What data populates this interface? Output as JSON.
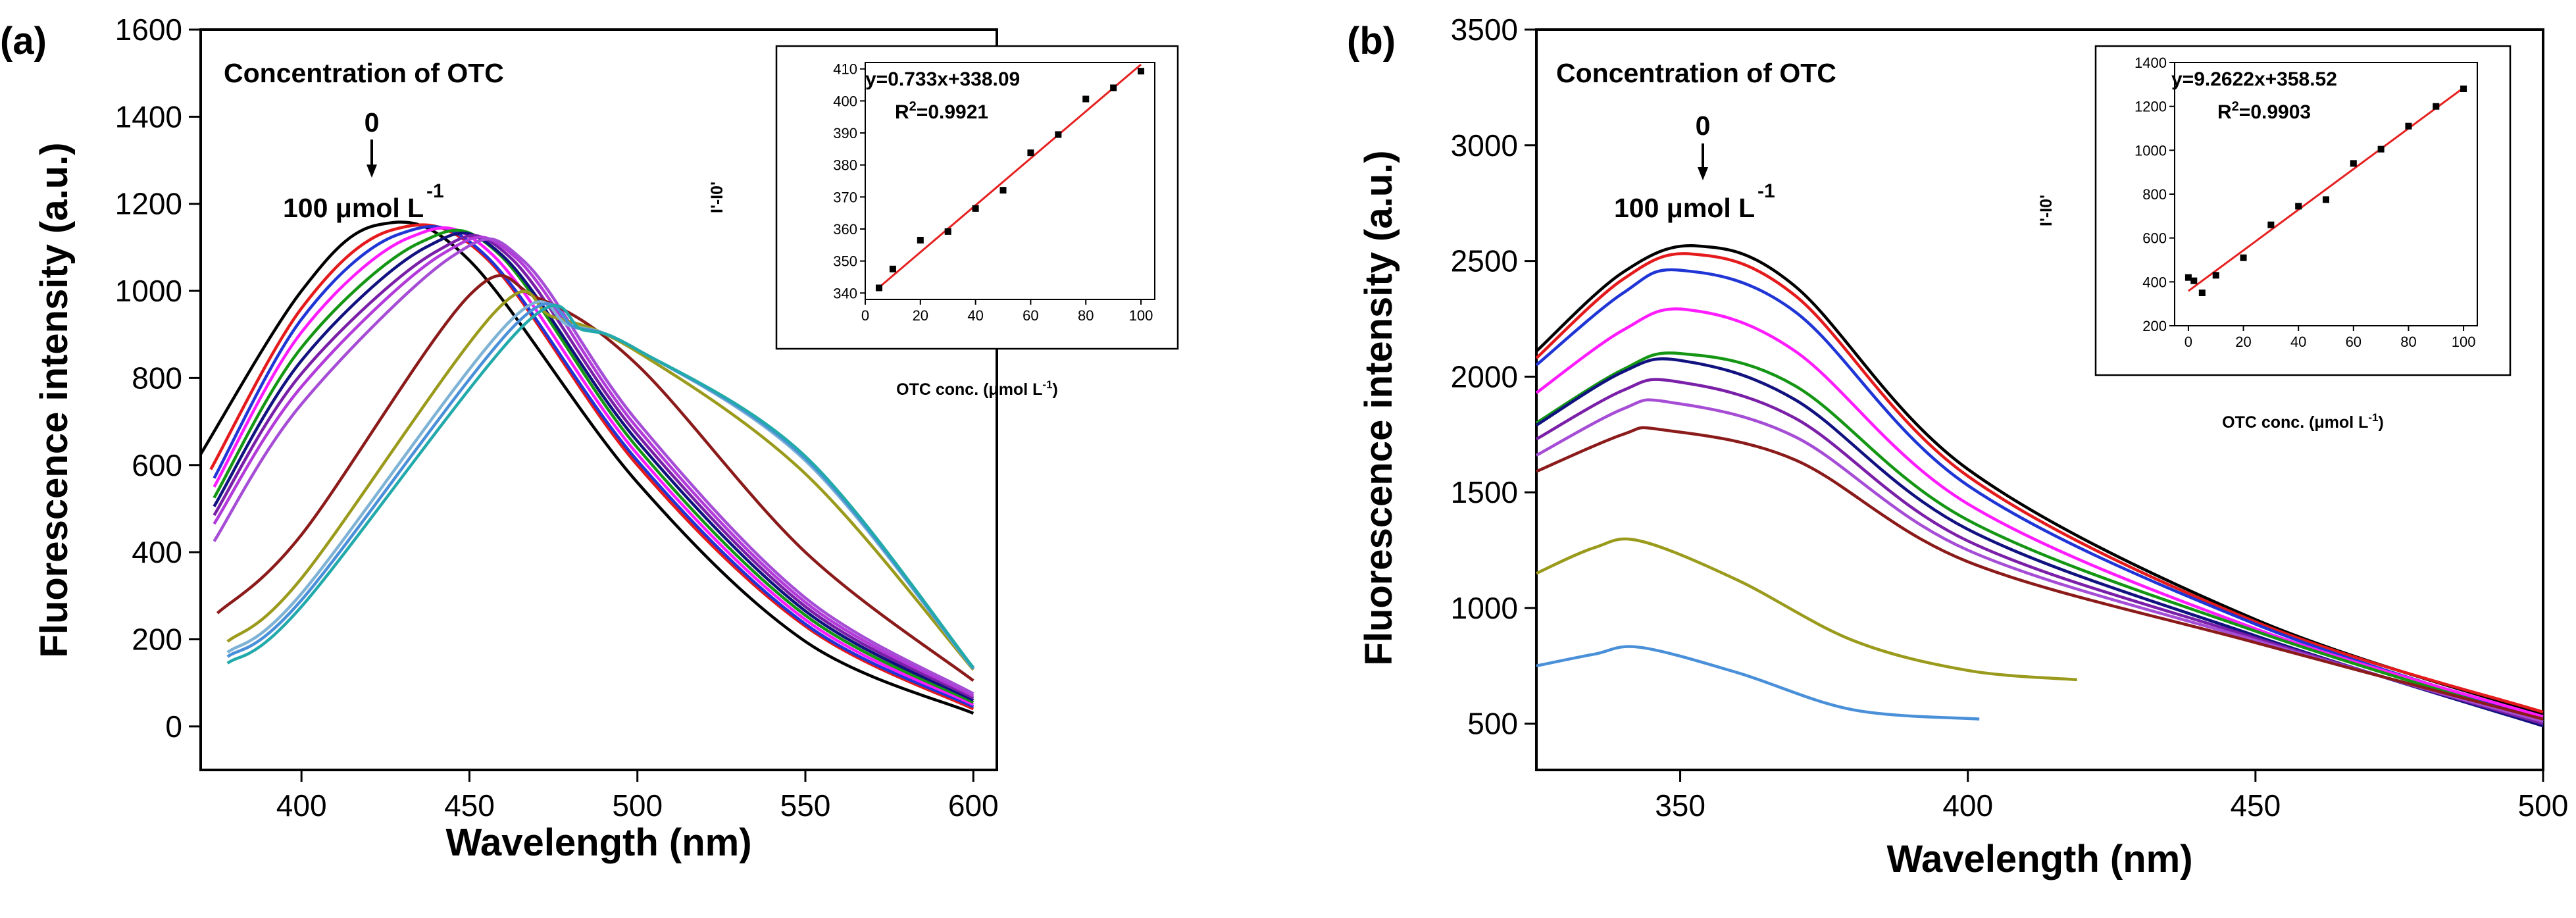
{
  "chart_data": [
    {
      "id": "a",
      "type": "line",
      "panel_label": "(a)",
      "xlabel": "Wavelength (nm)",
      "ylabel": "Fluorescence intensity (a.u.)",
      "xlim": [
        370,
        607
      ],
      "ylim": [
        -100,
        1600
      ],
      "xticks": [
        400,
        450,
        500,
        550,
        600
      ],
      "yticks": [
        0,
        200,
        400,
        600,
        800,
        1000,
        1200,
        1400,
        1600
      ],
      "annotation_title": "Concentration of OTC",
      "annotation_start": "0",
      "annotation_end": "100 μmol L",
      "annotation_end_exp": "-1",
      "series": [
        {
          "color": "#000000",
          "x": [
            370,
            400,
            423,
            450,
            500,
            550,
            600
          ],
          "y": [
            625,
            1000,
            1152,
            1070,
            560,
            195,
            30
          ]
        },
        {
          "color": "#e41a1c",
          "x": [
            373,
            400,
            427,
            455,
            500,
            550,
            600
          ],
          "y": [
            590,
            960,
            1140,
            1075,
            600,
            230,
            40
          ]
        },
        {
          "color": "#1f35d6",
          "x": [
            374,
            400,
            429,
            455,
            500,
            550,
            600
          ],
          "y": [
            570,
            935,
            1130,
            1080,
            610,
            235,
            45
          ]
        },
        {
          "color": "#ff1cff",
          "x": [
            374,
            400,
            432,
            457,
            500,
            550,
            600
          ],
          "y": [
            550,
            905,
            1122,
            1082,
            625,
            245,
            50
          ]
        },
        {
          "color": "#149614",
          "x": [
            374,
            400,
            435,
            459,
            500,
            550,
            600
          ],
          "y": [
            525,
            870,
            1110,
            1083,
            640,
            255,
            55
          ]
        },
        {
          "color": "#11117f",
          "x": [
            374,
            400,
            437,
            460,
            500,
            550,
            600
          ],
          "y": [
            505,
            840,
            1100,
            1080,
            655,
            265,
            60
          ]
        },
        {
          "color": "#7a1fa8",
          "x": [
            374,
            400,
            440,
            462,
            500,
            550,
            600
          ],
          "y": [
            485,
            810,
            1090,
            1078,
            670,
            275,
            65
          ]
        },
        {
          "color": "#b23bd9",
          "x": [
            374,
            400,
            442,
            464,
            500,
            550,
            600
          ],
          "y": [
            465,
            780,
            1085,
            1075,
            685,
            285,
            70
          ]
        },
        {
          "color": "#a64dd6",
          "x": [
            374,
            400,
            445,
            466,
            500,
            550,
            600
          ],
          "y": [
            425,
            740,
            1080,
            1070,
            700,
            295,
            75
          ]
        },
        {
          "color": "#8b1a1a",
          "x": [
            375,
            400,
            450,
            470,
            500,
            550,
            600
          ],
          "y": [
            260,
            440,
            990,
            985,
            830,
            400,
            105
          ]
        },
        {
          "color": "#9a9a1c",
          "x": [
            378,
            400,
            458,
            475,
            500,
            550,
            600
          ],
          "y": [
            195,
            340,
            955,
            940,
            860,
            580,
            130
          ]
        },
        {
          "color": "#7fb3d5",
          "x": [
            378,
            400,
            462,
            480,
            500,
            550,
            600
          ],
          "y": [
            170,
            305,
            930,
            920,
            865,
            610,
            132
          ]
        },
        {
          "color": "#4a90d9",
          "x": [
            378,
            400,
            464,
            482,
            500,
            550,
            600
          ],
          "y": [
            160,
            290,
            925,
            915,
            865,
            615,
            133
          ]
        },
        {
          "color": "#22aaaa",
          "x": [
            378,
            400,
            466,
            484,
            500,
            550,
            600
          ],
          "y": [
            145,
            275,
            920,
            910,
            865,
            620,
            135
          ]
        }
      ],
      "inset": {
        "equation": "y=0.733x+338.09",
        "r2_prefix": "R",
        "r2_exp": "2",
        "r2_value": "=0.9921",
        "xlabel": "OTC conc. (μmol L",
        "xlabel_exp": "-1",
        "xlabel_close": ")",
        "ylabel": "I'-I0'",
        "xlim": [
          0,
          105
        ],
        "ylim": [
          338,
          412
        ],
        "xticks": [
          0,
          20,
          40,
          60,
          80,
          100
        ],
        "yticks": [
          340,
          350,
          360,
          370,
          380,
          390,
          400,
          410
        ],
        "points_x": [
          5,
          10,
          20,
          30,
          40,
          50,
          60,
          70,
          80,
          90,
          100
        ],
        "points_y": [
          341.6,
          347.5,
          356.5,
          359.2,
          366.4,
          372.1,
          383.8,
          389.5,
          400.6,
          404.1,
          409.3
        ],
        "fit_slope": 0.733,
        "fit_intercept": 338.09,
        "fit_color": "#e62020"
      }
    },
    {
      "id": "b",
      "type": "line",
      "panel_label": "(b)",
      "xlabel": "Wavelength (nm)",
      "ylabel": "Fluorescence intensity (a.u.)",
      "xlim": [
        325,
        500
      ],
      "ylim": [
        300,
        3500
      ],
      "xticks": [
        350,
        400,
        450,
        500
      ],
      "yticks": [
        500,
        1000,
        1500,
        2000,
        2500,
        3000,
        3500
      ],
      "annotation_title": "Concentration of OTC",
      "annotation_start": "0",
      "annotation_end": "100 μmol L",
      "annotation_end_exp": "-1",
      "series": [
        {
          "color": "#000000",
          "x": [
            325,
            340,
            353,
            370,
            400,
            450,
            500
          ],
          "y": [
            2110,
            2450,
            2565,
            2390,
            1600,
            950,
            540
          ]
        },
        {
          "color": "#e41a1c",
          "x": [
            325,
            340,
            352,
            370,
            400,
            450,
            500
          ],
          "y": [
            2080,
            2420,
            2530,
            2350,
            1570,
            940,
            550
          ]
        },
        {
          "color": "#1f35d6",
          "x": [
            325,
            340,
            350,
            370,
            400,
            450,
            500
          ],
          "y": [
            2050,
            2360,
            2460,
            2280,
            1530,
            930,
            520
          ]
        },
        {
          "color": "#ff1cff",
          "x": [
            325,
            340,
            351,
            370,
            400,
            450,
            500
          ],
          "y": [
            1930,
            2200,
            2290,
            2110,
            1450,
            910,
            530
          ]
        },
        {
          "color": "#149614",
          "x": [
            325,
            340,
            350,
            370,
            400,
            450,
            500
          ],
          "y": [
            1800,
            2030,
            2100,
            1960,
            1380,
            900,
            510
          ]
        },
        {
          "color": "#11117f",
          "x": [
            325,
            340,
            350,
            370,
            400,
            450,
            500
          ],
          "y": [
            1790,
            2020,
            2070,
            1900,
            1340,
            880,
            490
          ]
        },
        {
          "color": "#7a1fa8",
          "x": [
            325,
            340,
            349,
            370,
            400,
            450,
            500
          ],
          "y": [
            1730,
            1940,
            1980,
            1820,
            1290,
            870,
            500
          ]
        },
        {
          "color": "#a64dd6",
          "x": [
            325,
            340,
            348,
            370,
            400,
            450,
            500
          ],
          "y": [
            1660,
            1860,
            1890,
            1740,
            1250,
            860,
            510
          ]
        },
        {
          "color": "#8b1a1a",
          "x": [
            325,
            340,
            347,
            370,
            400,
            450,
            500
          ],
          "y": [
            1590,
            1750,
            1770,
            1640,
            1200,
            850,
            520
          ]
        },
        {
          "color": "#9a9a1c",
          "x": [
            325,
            335,
            343,
            360,
            380,
            400,
            419
          ],
          "y": [
            1150,
            1260,
            1290,
            1120,
            860,
            730,
            690
          ]
        },
        {
          "color": "#4a90d9",
          "x": [
            325,
            335,
            343,
            360,
            380,
            402
          ],
          "y": [
            750,
            800,
            830,
            720,
            560,
            520
          ]
        }
      ],
      "inset": {
        "equation": "y=9.2622x+358.52",
        "r2_prefix": "R",
        "r2_exp": "2",
        "r2_value": "=0.9903",
        "xlabel": "OTC conc. (μmol L",
        "xlabel_exp": "-1",
        "xlabel_close": ")",
        "ylabel": "I'-I0'",
        "xlim": [
          -5,
          105
        ],
        "ylim": [
          200,
          1400
        ],
        "xticks": [
          0,
          20,
          40,
          60,
          80,
          100
        ],
        "yticks": [
          200,
          400,
          600,
          800,
          1000,
          1200,
          1400
        ],
        "points_x": [
          0,
          2,
          5,
          10,
          20,
          30,
          40,
          50,
          60,
          70,
          80,
          90,
          100
        ],
        "points_y": [
          420,
          405,
          350,
          430,
          510,
          660,
          745,
          775,
          940,
          1005,
          1110,
          1200,
          1280
        ],
        "fit_slope": 9.2622,
        "fit_intercept": 358.52,
        "fit_color": "#e62020"
      }
    }
  ]
}
